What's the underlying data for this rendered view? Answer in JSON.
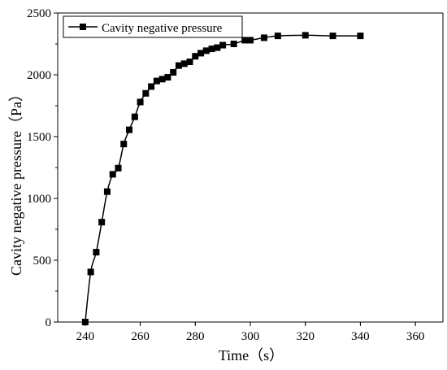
{
  "chart_data": {
    "type": "line",
    "title": "",
    "xlabel": "Time（s）",
    "ylabel": "Cavity negative pressure（Pa）",
    "xlim": [
      230,
      370
    ],
    "ylim": [
      0,
      2500
    ],
    "x_ticks": [
      240,
      260,
      280,
      300,
      320,
      340,
      360
    ],
    "y_ticks": [
      0,
      500,
      1000,
      1500,
      2000,
      2500
    ],
    "grid": false,
    "legend_position": "top-left",
    "series": [
      {
        "name": "Cavity negative pressure",
        "color": "#000000",
        "marker": "square",
        "x": [
          240,
          242,
          244,
          246,
          248,
          250,
          252,
          254,
          256,
          258,
          260,
          262,
          264,
          266,
          268,
          270,
          272,
          274,
          276,
          278,
          280,
          282,
          284,
          286,
          288,
          290,
          294,
          298,
          300,
          305,
          310,
          320,
          330,
          340
        ],
        "y": [
          0,
          405,
          565,
          808,
          1055,
          1195,
          1245,
          1440,
          1555,
          1660,
          1780,
          1850,
          1905,
          1950,
          1965,
          1980,
          2020,
          2075,
          2090,
          2105,
          2150,
          2175,
          2195,
          2210,
          2220,
          2240,
          2250,
          2280,
          2280,
          2300,
          2315,
          2320,
          2315,
          2315
        ]
      }
    ]
  }
}
